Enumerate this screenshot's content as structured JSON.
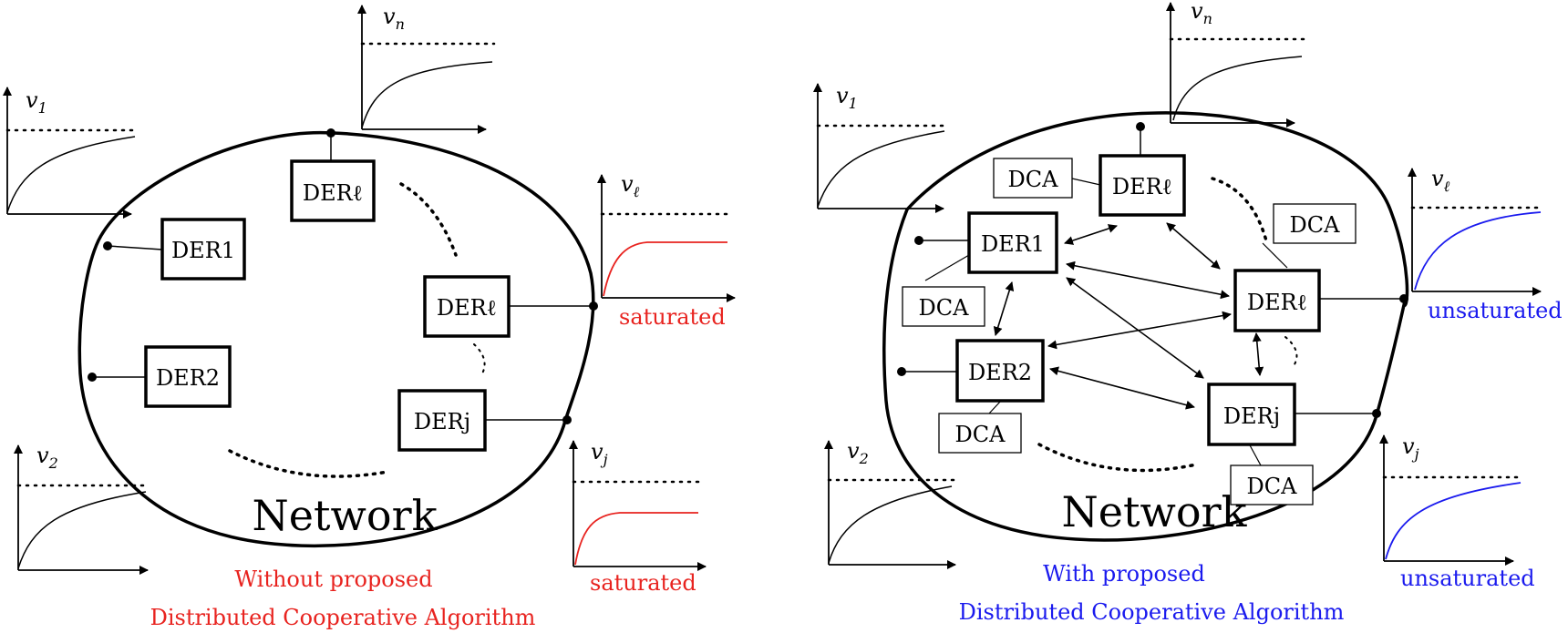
{
  "colors": {
    "stroke": "#000000",
    "saturated": "#e8231f",
    "unsaturated": "#1a1aee"
  },
  "left": {
    "network_label": "Network",
    "der_labels": {
      "l_top": "DERℓ",
      "one": "DER1",
      "two": "DER2",
      "l_mid": "DERℓ",
      "j": "DERj"
    },
    "plots": {
      "vn": "v",
      "vn_sub": "n",
      "v1": "v",
      "v1_sub": "1",
      "vl": "v",
      "vl_sub": "ℓ",
      "v2": "v",
      "v2_sub": "2",
      "vj": "v",
      "vj_sub": "j"
    },
    "status_l": "saturated",
    "status_j": "saturated",
    "caption_line1": "Without proposed",
    "caption_line2": "Distributed Cooperative Algorithm"
  },
  "right": {
    "network_label": "Network",
    "der_labels": {
      "l_top": "DERℓ",
      "one": "DER1",
      "two": "DER2",
      "l_mid": "DERℓ",
      "j": "DERj"
    },
    "dca_label": "DCA",
    "plots": {
      "vn": "v",
      "vn_sub": "n",
      "v1": "v",
      "v1_sub": "1",
      "vl": "v",
      "vl_sub": "ℓ",
      "v2": "v",
      "v2_sub": "2",
      "vj": "v",
      "vj_sub": "j"
    },
    "status_l": "unsaturated",
    "status_j": "unsaturated",
    "caption_line1": "With proposed",
    "caption_line2": "Distributed Cooperative Algorithm"
  }
}
